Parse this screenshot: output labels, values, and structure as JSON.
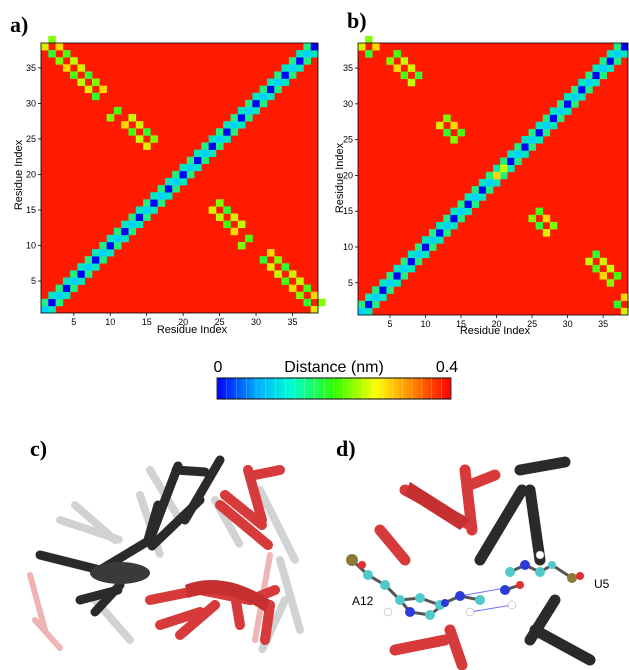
{
  "panels": {
    "a": "a)",
    "b": "b)",
    "c": "c)",
    "d": "d)"
  },
  "heatmap": {
    "n": 38,
    "ticks": [
      "5",
      "10",
      "15",
      "20",
      "25",
      "30",
      "35"
    ],
    "xlabel": "Residue Index",
    "ylabel": "Residue Index",
    "background_color": "#ff1a00",
    "diagonal_colors": [
      "#0000ff",
      "#00d2ff"
    ]
  },
  "colorbar": {
    "min_label": "0",
    "max_label": "0.4",
    "title": "Distance (nm)",
    "stops": [
      "#0000ff",
      "#00b4ff",
      "#00ffd0",
      "#30ff00",
      "#ffff00",
      "#ff7a00",
      "#ff0000"
    ]
  },
  "chart_data": [
    {
      "type": "heatmap",
      "panel": "a",
      "xlabel": "Residue Index",
      "ylabel": "Residue Index",
      "xlim": [
        1,
        38
      ],
      "ylim": [
        1,
        38
      ],
      "value_range_nm": [
        0,
        0.4
      ],
      "main_diagonal": "i = j, contact distance 0 (alternating blue/cyan)",
      "anti_diagonal_contacts": [
        {
          "i": 1,
          "j": 38
        },
        {
          "i": 2,
          "j": 37
        },
        {
          "i": 3,
          "j": 36
        },
        {
          "i": 4,
          "j": 35
        },
        {
          "i": 5,
          "j": 34
        },
        {
          "i": 6,
          "j": 33
        },
        {
          "i": 7,
          "j": 32
        },
        {
          "i": 8,
          "j": 31
        },
        {
          "i": 10,
          "j": 28
        },
        {
          "i": 12,
          "j": 27
        },
        {
          "i": 13,
          "j": 26
        },
        {
          "i": 14,
          "j": 25
        },
        {
          "i": 15,
          "j": 24
        }
      ],
      "crossing_point": [
        20.5,
        20.5
      ]
    },
    {
      "type": "heatmap",
      "panel": "b",
      "xlabel": "Residue Index",
      "ylabel": "Residue Index",
      "xlim": [
        1,
        38
      ],
      "ylim": [
        1,
        38
      ],
      "value_range_nm": [
        0,
        0.4
      ],
      "main_diagonal": "i = j, contact distance 0 (alternating blue/cyan)",
      "anti_diagonal_contacts": [
        {
          "i": 1,
          "j": 38
        },
        {
          "i": 2,
          "j": 37
        },
        {
          "i": 5,
          "j": 36
        },
        {
          "i": 6,
          "j": 35
        },
        {
          "i": 7,
          "j": 34
        },
        {
          "i": 8,
          "j": 33
        },
        {
          "i": 12,
          "j": 27
        },
        {
          "i": 13,
          "j": 26
        },
        {
          "i": 14,
          "j": 25
        },
        {
          "i": 20,
          "j": 20
        }
      ],
      "crossing_point": [
        20.5,
        20.5
      ]
    }
  ],
  "molecule_labels": {
    "a12": "A12",
    "u5": "U5"
  }
}
